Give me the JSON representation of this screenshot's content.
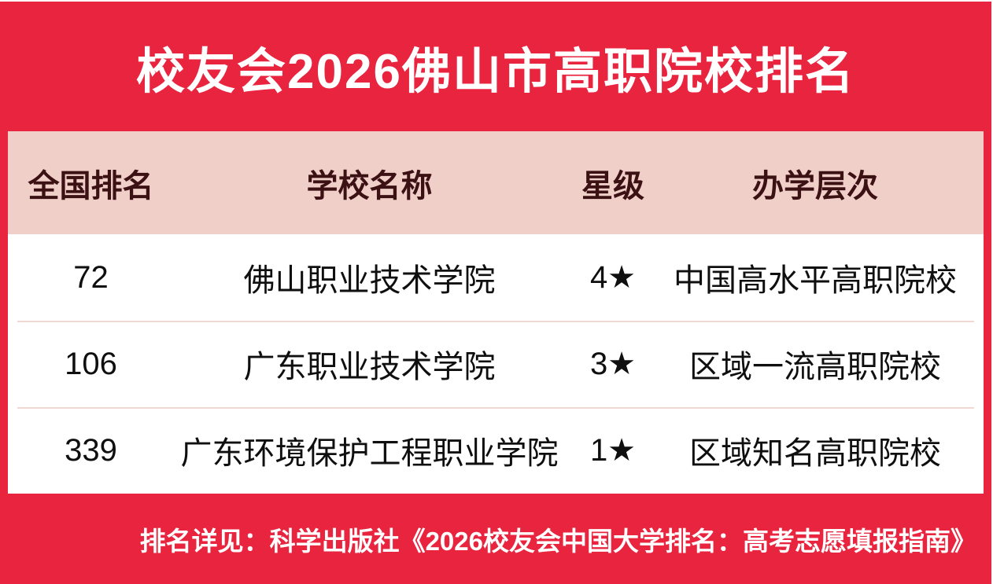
{
  "chart_data": {
    "type": "table",
    "title": "校友会2026佛山市高职院校排名",
    "columns": [
      "全国排名",
      "学校名称",
      "星级",
      "办学层次"
    ],
    "rows": [
      [
        "72",
        "佛山职业技术学院",
        "4★",
        "中国高水平高职院校"
      ],
      [
        "106",
        "广东职业技术学院",
        "3★",
        "区域一流高职院校"
      ],
      [
        "339",
        "广东环境保护工程职业学院",
        "1★",
        "区域知名高职院校"
      ]
    ],
    "footnote": "排名详见：科学出版社《2026校友会中国大学排名：高考志愿填报指南》"
  },
  "colors": {
    "red": "#E9243F",
    "header_bg": "#F0CFC9",
    "header_text": "#3B1113",
    "divider": "#F0D8D5",
    "row_text": "#0F0F0F",
    "title_text": "#FFFFFF"
  }
}
